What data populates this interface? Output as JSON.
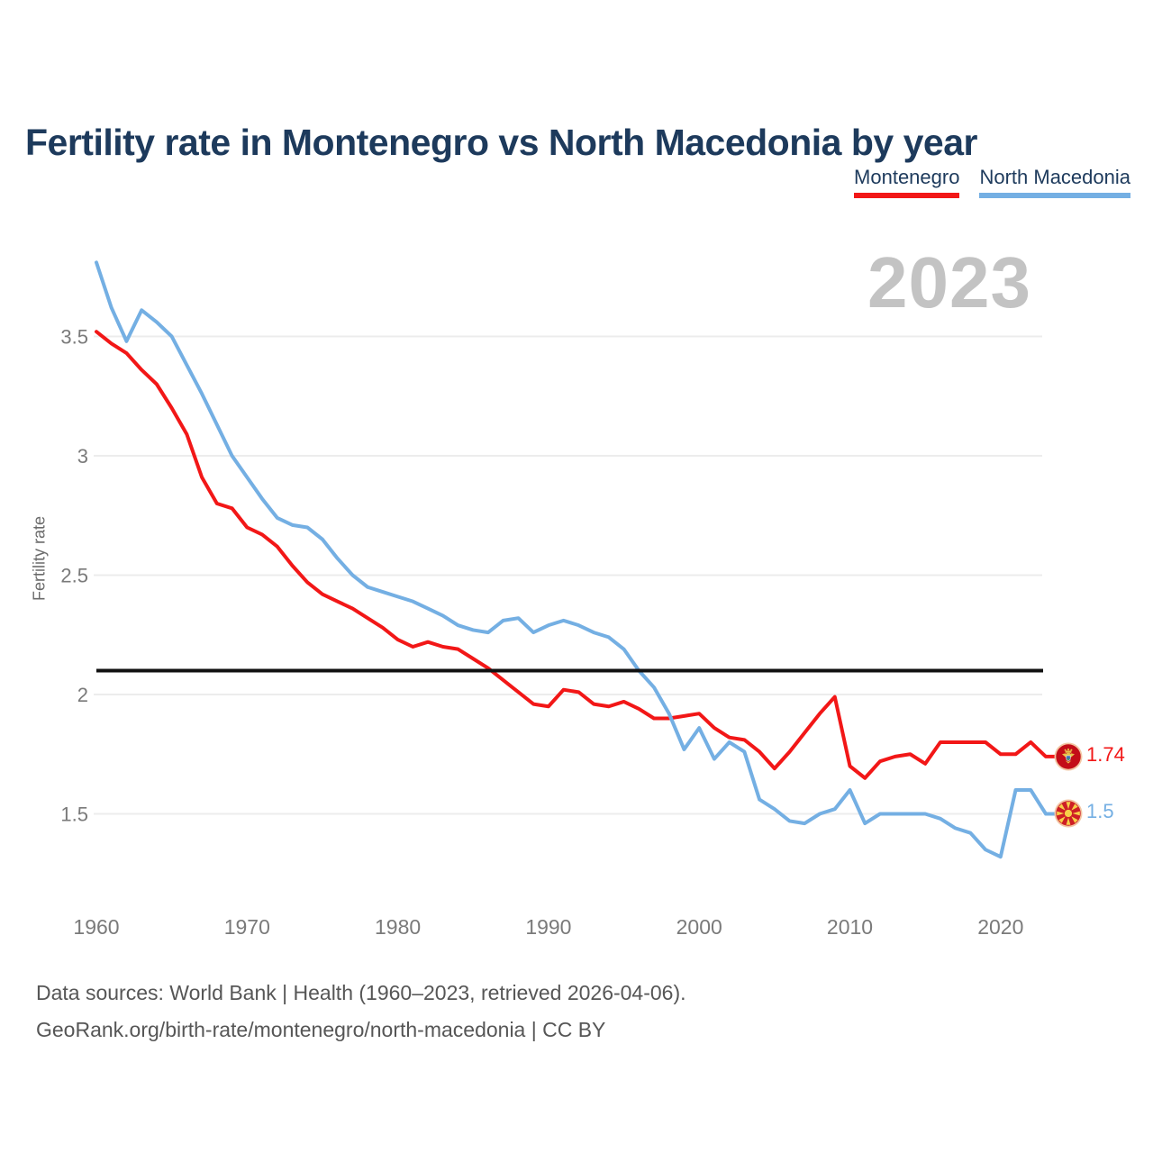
{
  "page": {
    "title": "Fertility rate in Montenegro vs North Macedonia by year",
    "watermark": "2023"
  },
  "legend": {
    "items": [
      {
        "label": "Montenegro",
        "color": "#f21717"
      },
      {
        "label": "North Macedonia",
        "color": "#74afe3"
      }
    ]
  },
  "axes": {
    "y_label": "Fertility rate"
  },
  "end_labels": [
    {
      "series": "Montenegro",
      "value": "1.74",
      "color": "#f21717"
    },
    {
      "series": "North Macedonia",
      "value": "1.5",
      "color": "#74afe3"
    }
  ],
  "footer": {
    "sources_line": "Data sources: World Bank | Health (1960–2023, retrieved 2026-04-06).",
    "url_line": "GeoRank.org/birth-rate/montenegro/north-macedonia | CC BY"
  },
  "chart_data": {
    "type": "line",
    "title": "Fertility rate in Montenegro vs North Macedonia by year",
    "xlabel": "",
    "ylabel": "Fertility rate",
    "x_ticks": [
      1960,
      1970,
      1980,
      1990,
      2000,
      2010,
      2020
    ],
    "y_ticks": [
      1.5,
      2,
      2.5,
      3,
      3.5
    ],
    "xlim": [
      1960,
      2023
    ],
    "ylim": [
      1.28,
      3.85
    ],
    "grid": "horizontal",
    "legend_position": "top-right",
    "reference_line": {
      "value": 2.1,
      "color": "#111111"
    },
    "years": [
      1960,
      1961,
      1962,
      1963,
      1964,
      1965,
      1966,
      1967,
      1968,
      1969,
      1970,
      1971,
      1972,
      1973,
      1974,
      1975,
      1976,
      1977,
      1978,
      1979,
      1980,
      1981,
      1982,
      1983,
      1984,
      1985,
      1986,
      1987,
      1988,
      1989,
      1990,
      1991,
      1992,
      1993,
      1994,
      1995,
      1996,
      1997,
      1998,
      1999,
      2000,
      2001,
      2002,
      2003,
      2004,
      2005,
      2006,
      2007,
      2008,
      2009,
      2010,
      2011,
      2012,
      2013,
      2014,
      2015,
      2016,
      2017,
      2018,
      2019,
      2020,
      2021,
      2022,
      2023
    ],
    "series": [
      {
        "name": "Montenegro",
        "color": "#f21717",
        "end_label": "1.74",
        "values": [
          3.52,
          3.47,
          3.43,
          3.36,
          3.3,
          3.2,
          3.09,
          2.91,
          2.8,
          2.78,
          2.7,
          2.67,
          2.62,
          2.54,
          2.47,
          2.42,
          2.39,
          2.36,
          2.32,
          2.28,
          2.23,
          2.2,
          2.22,
          2.2,
          2.19,
          2.15,
          2.11,
          2.06,
          2.01,
          1.96,
          1.95,
          2.02,
          2.01,
          1.96,
          1.95,
          1.97,
          1.94,
          1.9,
          1.9,
          1.91,
          1.92,
          1.86,
          1.82,
          1.81,
          1.76,
          1.69,
          1.76,
          1.84,
          1.92,
          1.99,
          1.7,
          1.65,
          1.72,
          1.74,
          1.75,
          1.71,
          1.8,
          1.8,
          1.8,
          1.8,
          1.75,
          1.75,
          1.8,
          1.74
        ]
      },
      {
        "name": "North Macedonia",
        "color": "#74afe3",
        "end_label": "1.5",
        "values": [
          3.81,
          3.62,
          3.48,
          3.61,
          3.56,
          3.5,
          3.38,
          3.26,
          3.13,
          3.0,
          2.91,
          2.82,
          2.74,
          2.71,
          2.7,
          2.65,
          2.57,
          2.5,
          2.45,
          2.43,
          2.41,
          2.39,
          2.36,
          2.33,
          2.29,
          2.27,
          2.26,
          2.31,
          2.32,
          2.26,
          2.29,
          2.31,
          2.29,
          2.26,
          2.24,
          2.19,
          2.1,
          2.03,
          1.92,
          1.77,
          1.86,
          1.73,
          1.8,
          1.76,
          1.56,
          1.52,
          1.47,
          1.46,
          1.5,
          1.52,
          1.6,
          1.46,
          1.5,
          1.5,
          1.5,
          1.5,
          1.48,
          1.44,
          1.42,
          1.35,
          1.32,
          1.6,
          1.6,
          1.5
        ]
      }
    ]
  }
}
